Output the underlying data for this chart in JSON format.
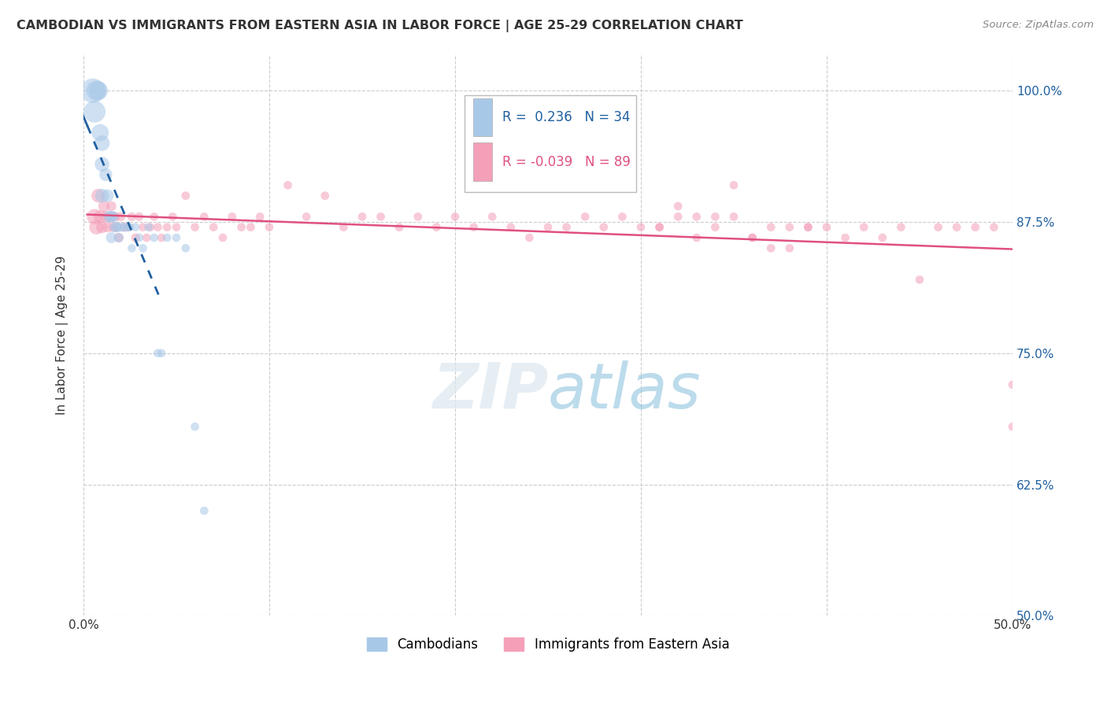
{
  "title": "CAMBODIAN VS IMMIGRANTS FROM EASTERN ASIA IN LABOR FORCE | AGE 25-29 CORRELATION CHART",
  "source": "Source: ZipAtlas.com",
  "ylabel": "In Labor Force | Age 25-29",
  "xlim": [
    0.0,
    0.5
  ],
  "ylim": [
    0.5,
    1.035
  ],
  "xticks": [
    0.0,
    0.1,
    0.2,
    0.3,
    0.4,
    0.5
  ],
  "xtick_labels": [
    "0.0%",
    "",
    "",
    "",
    "",
    "50.0%"
  ],
  "yticks": [
    0.5,
    0.625,
    0.75,
    0.875,
    1.0
  ],
  "ytick_labels": [
    "50.0%",
    "62.5%",
    "75.0%",
    "87.5%",
    "100.0%"
  ],
  "blue_color": "#a8c8e8",
  "pink_color": "#f4a0b8",
  "blue_line_color": "#2060a0",
  "pink_line_color": "#e05080",
  "R_blue": 0.236,
  "N_blue": 34,
  "R_pink": -0.039,
  "N_pink": 89,
  "legend_labels": [
    "Cambodians",
    "Immigrants from Eastern Asia"
  ],
  "background_color": "#ffffff",
  "blue_x": [
    0.005,
    0.006,
    0.007,
    0.008,
    0.009,
    0.01,
    0.01,
    0.01,
    0.012,
    0.013,
    0.014,
    0.015,
    0.015,
    0.016,
    0.017,
    0.018,
    0.019,
    0.02,
    0.022,
    0.024,
    0.025,
    0.026,
    0.028,
    0.03,
    0.032,
    0.035,
    0.038,
    0.04,
    0.042,
    0.045,
    0.05,
    0.055,
    0.06,
    0.065
  ],
  "blue_y": [
    1.0,
    0.98,
    1.0,
    1.0,
    0.96,
    0.95,
    0.93,
    0.9,
    0.92,
    0.9,
    0.88,
    0.88,
    0.86,
    0.88,
    0.87,
    0.87,
    0.86,
    0.87,
    0.87,
    0.87,
    0.87,
    0.85,
    0.87,
    0.86,
    0.85,
    0.87,
    0.86,
    0.75,
    0.75,
    0.86,
    0.86,
    0.85,
    0.68,
    0.6
  ],
  "blue_sizes": [
    500,
    400,
    350,
    300,
    250,
    200,
    180,
    160,
    140,
    130,
    120,
    110,
    100,
    95,
    90,
    85,
    80,
    75,
    70,
    65,
    60,
    60,
    60,
    60,
    60,
    60,
    60,
    60,
    60,
    60,
    60,
    60,
    60,
    60
  ],
  "pink_x": [
    0.006,
    0.007,
    0.008,
    0.009,
    0.01,
    0.011,
    0.012,
    0.013,
    0.014,
    0.015,
    0.016,
    0.017,
    0.018,
    0.019,
    0.02,
    0.022,
    0.024,
    0.026,
    0.028,
    0.03,
    0.032,
    0.034,
    0.036,
    0.038,
    0.04,
    0.042,
    0.045,
    0.048,
    0.05,
    0.055,
    0.06,
    0.065,
    0.07,
    0.075,
    0.08,
    0.085,
    0.09,
    0.095,
    0.1,
    0.11,
    0.12,
    0.13,
    0.14,
    0.15,
    0.16,
    0.17,
    0.18,
    0.19,
    0.2,
    0.21,
    0.22,
    0.23,
    0.24,
    0.25,
    0.26,
    0.27,
    0.28,
    0.29,
    0.3,
    0.31,
    0.32,
    0.33,
    0.34,
    0.35,
    0.36,
    0.37,
    0.38,
    0.39,
    0.4,
    0.41,
    0.42,
    0.43,
    0.44,
    0.45,
    0.46,
    0.47,
    0.48,
    0.49,
    0.5,
    0.31,
    0.32,
    0.33,
    0.34,
    0.35,
    0.36,
    0.37,
    0.38,
    0.39,
    0.5
  ],
  "pink_y": [
    0.88,
    0.87,
    0.9,
    0.88,
    0.87,
    0.89,
    0.88,
    0.87,
    0.88,
    0.89,
    0.87,
    0.88,
    0.87,
    0.86,
    0.88,
    0.87,
    0.87,
    0.88,
    0.86,
    0.88,
    0.87,
    0.86,
    0.87,
    0.88,
    0.87,
    0.86,
    0.87,
    0.88,
    0.87,
    0.9,
    0.87,
    0.88,
    0.87,
    0.86,
    0.88,
    0.87,
    0.87,
    0.88,
    0.87,
    0.91,
    0.88,
    0.9,
    0.87,
    0.88,
    0.88,
    0.87,
    0.88,
    0.87,
    0.88,
    0.87,
    0.88,
    0.87,
    0.86,
    0.87,
    0.87,
    0.88,
    0.87,
    0.88,
    0.87,
    0.87,
    0.88,
    0.86,
    0.87,
    0.88,
    0.86,
    0.87,
    0.87,
    0.87,
    0.87,
    0.86,
    0.87,
    0.86,
    0.87,
    0.82,
    0.87,
    0.87,
    0.87,
    0.87,
    0.72,
    0.87,
    0.89,
    0.88,
    0.88,
    0.91,
    0.86,
    0.85,
    0.85,
    0.87,
    0.68
  ],
  "pink_sizes": [
    200,
    180,
    160,
    140,
    120,
    110,
    100,
    95,
    90,
    85,
    80,
    80,
    75,
    75,
    70,
    70,
    65,
    65,
    65,
    65,
    60,
    60,
    60,
    60,
    60,
    60,
    60,
    60,
    60,
    60,
    60,
    60,
    60,
    60,
    60,
    60,
    60,
    60,
    60,
    60,
    60,
    60,
    60,
    60,
    60,
    60,
    60,
    60,
    60,
    60,
    60,
    60,
    60,
    60,
    60,
    60,
    60,
    60,
    60,
    60,
    60,
    60,
    60,
    60,
    60,
    60,
    60,
    60,
    60,
    60,
    60,
    60,
    60,
    60,
    60,
    60,
    60,
    60,
    60,
    60,
    60,
    60,
    60,
    60,
    60,
    60,
    60,
    60,
    60
  ]
}
